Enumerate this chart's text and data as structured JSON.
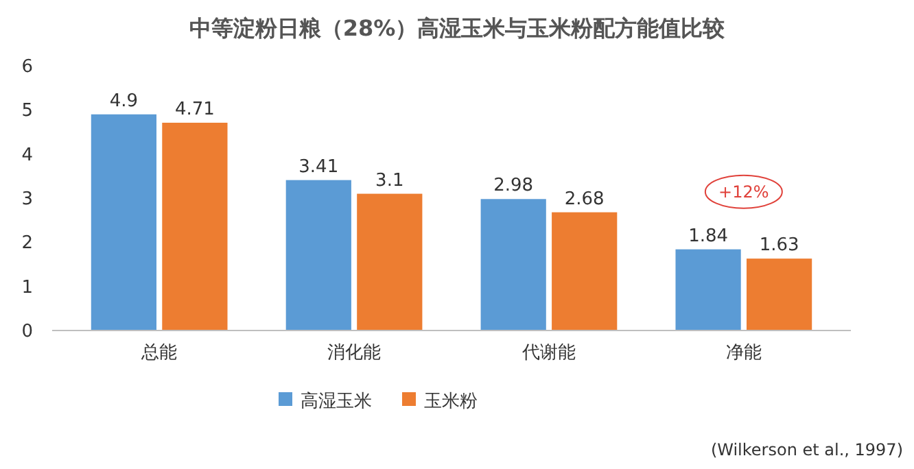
{
  "chart_data": {
    "type": "bar",
    "title": "中等淀粉日粮（28%）高湿玉米与玉米粉配方能值比较",
    "categories": [
      "总能",
      "消化能",
      "代谢能",
      "净能"
    ],
    "series": [
      {
        "name": "高湿玉米",
        "color": "#5b9bd5",
        "values": [
          4.9,
          3.41,
          2.98,
          1.84
        ]
      },
      {
        "name": "玉米粉",
        "color": "#ed7d31",
        "values": [
          4.71,
          3.1,
          2.68,
          1.63
        ]
      }
    ],
    "ylim": [
      0,
      6
    ],
    "yticks": [
      0,
      1,
      2,
      3,
      4,
      5,
      6
    ],
    "grid": false,
    "legend": "bottom",
    "data_labels": true,
    "annotations": [
      "+12%",
      "(Wilkerson et al., 1997)"
    ]
  }
}
